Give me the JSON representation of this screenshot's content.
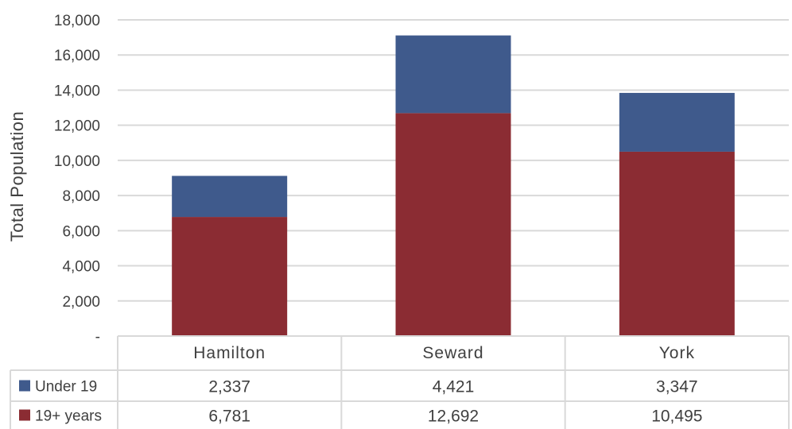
{
  "chart_data": {
    "type": "bar",
    "stacked": true,
    "categories": [
      "Hamilton",
      "Seward",
      "York"
    ],
    "series": [
      {
        "name": "19+ years",
        "values": [
          6781,
          12692,
          10495
        ],
        "color": "#8B2C33"
      },
      {
        "name": "Under 19",
        "values": [
          2337,
          4421,
          3347
        ],
        "color": "#3F5A8C"
      }
    ],
    "ylabel": "Total Population",
    "ylim": [
      0,
      18000
    ],
    "yticks": [
      0,
      2000,
      4000,
      6000,
      8000,
      10000,
      12000,
      14000,
      16000,
      18000
    ],
    "ytick_labels": [
      "-",
      "2,000",
      "4,000",
      "6,000",
      "8,000",
      "10,000",
      "12,000",
      "14,000",
      "16,000",
      "18,000"
    ],
    "grid": true,
    "data_table": {
      "rows": [
        {
          "legend": "Under 19",
          "color": "#3F5A8C",
          "cells": [
            "2,337",
            "4,421",
            "3,347"
          ]
        },
        {
          "legend": "19+ years",
          "color": "#8B2C33",
          "cells": [
            "6,781",
            "12,692",
            "10,495"
          ]
        }
      ]
    }
  }
}
